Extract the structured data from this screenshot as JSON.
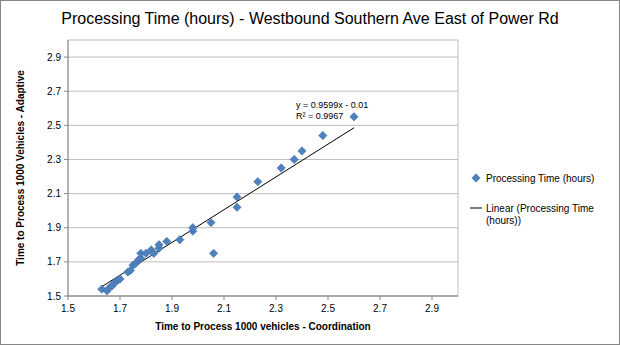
{
  "chart_data": {
    "type": "scatter",
    "title": "Processing Time (hours) - Westbound Southern Ave East of Power Rd",
    "x_label": "Time to Process 1000 vehicles - Coordination",
    "y_label": "Time to Process 1000 Vehicles - Adaptive",
    "series": [
      {
        "name": "Processing Time (hours)",
        "color": "#4f81bd",
        "marker": "diamond",
        "x": [
          1.63,
          1.65,
          1.66,
          1.67,
          1.68,
          1.69,
          1.7,
          1.73,
          1.74,
          1.75,
          1.76,
          1.77,
          1.78,
          1.78,
          1.8,
          1.82,
          1.83,
          1.85,
          1.85,
          1.88,
          1.93,
          1.98,
          1.98,
          2.05,
          2.06,
          2.15,
          2.15,
          2.23,
          2.32,
          2.37,
          2.4,
          2.48,
          2.6
        ],
        "values": [
          1.54,
          1.53,
          1.55,
          1.56,
          1.58,
          1.59,
          1.6,
          1.64,
          1.65,
          1.68,
          1.69,
          1.71,
          1.72,
          1.75,
          1.75,
          1.77,
          1.75,
          1.78,
          1.8,
          1.82,
          1.83,
          1.88,
          1.9,
          1.93,
          1.75,
          2.02,
          2.08,
          2.17,
          2.25,
          2.3,
          2.35,
          2.44,
          2.55
        ]
      }
    ],
    "trendline": {
      "name": "Linear (Processing Time (hours))",
      "color": "#000000",
      "line_style": "solid",
      "slope": 0.9599,
      "intercept": -0.01,
      "equation": "y = 0.9599x - 0.01",
      "r_squared_label": "R² = 0.9967"
    },
    "xlim": [
      1.5,
      3.0
    ],
    "xticks": [
      1.5,
      1.7,
      1.9,
      2.1,
      2.3,
      2.5,
      2.7,
      2.9
    ],
    "ylim": [
      1.5,
      3.0
    ],
    "yticks": [
      1.5,
      1.7,
      1.9,
      2.1,
      2.3,
      2.5,
      2.7,
      2.9
    ],
    "grid": true,
    "legend": "right"
  }
}
